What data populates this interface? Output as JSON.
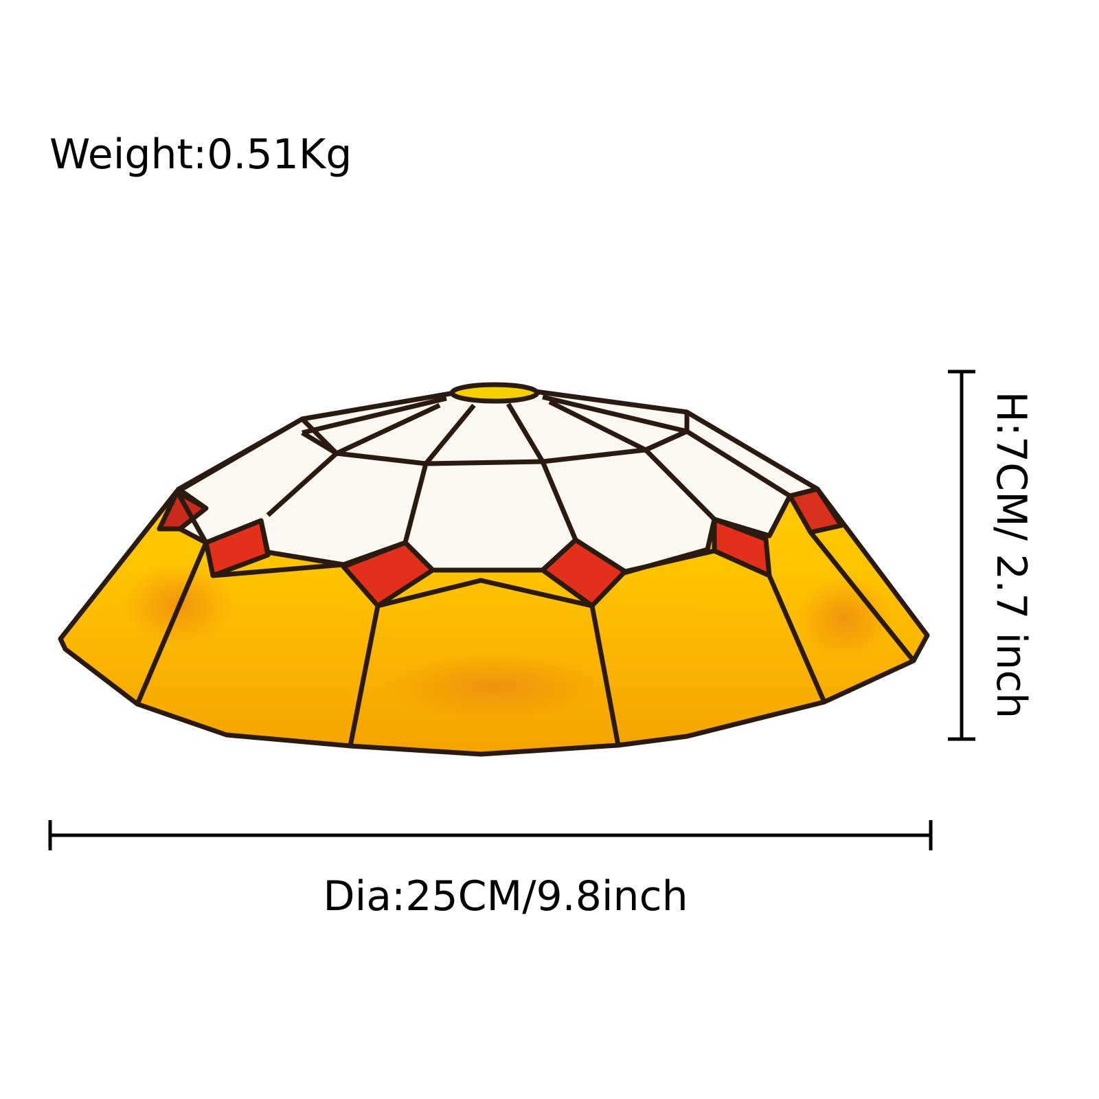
{
  "weight": "Weight:0.51Kg",
  "height": "H:7CM/ 2.7 inch",
  "diameter": "Dia:25CM/9.8inch"
}
